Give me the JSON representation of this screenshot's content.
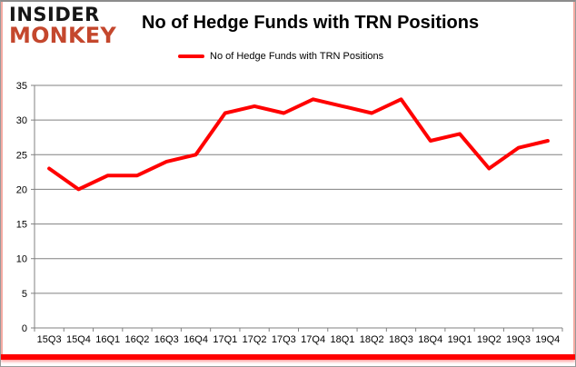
{
  "brand": {
    "line1": "INSIDER",
    "line2": "MONKEY",
    "line1_color": "#161616",
    "line2_color": "#c4472d"
  },
  "header": {
    "title": "No of Hedge Funds with TRN Positions"
  },
  "legend": {
    "label": "No of Hedge Funds with TRN Positions",
    "swatch_color": "#ff0000"
  },
  "chart_data": {
    "type": "line",
    "title": "No of Hedge Funds with TRN Positions",
    "categories": [
      "15Q3",
      "15Q4",
      "16Q1",
      "16Q2",
      "16Q3",
      "16Q4",
      "17Q1",
      "17Q2",
      "17Q3",
      "17Q4",
      "18Q1",
      "18Q2",
      "18Q3",
      "18Q4",
      "19Q1",
      "19Q2",
      "19Q3",
      "19Q4"
    ],
    "series": [
      {
        "name": "No of Hedge Funds with TRN Positions",
        "color": "#ff0000",
        "values": [
          23,
          20,
          22,
          22,
          24,
          25,
          31,
          32,
          31,
          33,
          32,
          31,
          33,
          27,
          28,
          23,
          26,
          27
        ]
      }
    ],
    "xlabel": "",
    "ylabel": "",
    "ylim": [
      0,
      35
    ],
    "ytick_step": 5,
    "grid": true,
    "grid_color": "#808080",
    "axis_color": "#808080",
    "tick_label_color": "#000000",
    "legend_position": "top-center"
  },
  "frame": {
    "bottom_bar_color": "#ff0000",
    "side_border_color": "#f5aba3"
  }
}
